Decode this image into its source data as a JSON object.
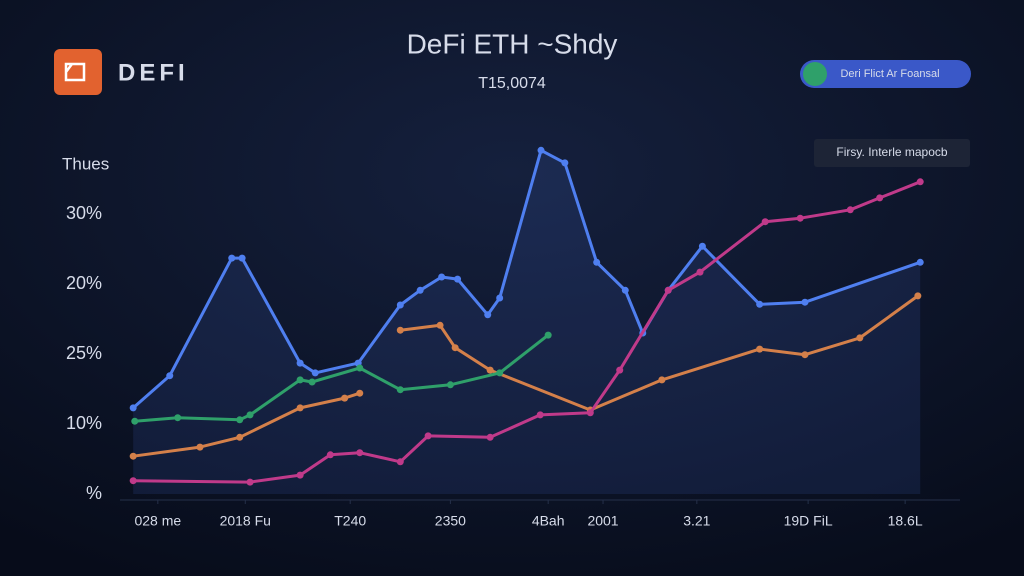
{
  "header": {
    "logo": "DEFI",
    "title": "DeFi ETH ~Shdy",
    "subtitle": "T15,0074",
    "button": "Deri Flict Ar Foansal",
    "note": "Firsy. Interle mapocb"
  },
  "chart_data": {
    "type": "line",
    "y_axis_label": "Thues",
    "y_labels": [
      "30%",
      "20%",
      "25%",
      "10%",
      "%"
    ],
    "xlim": [
      0,
      100
    ],
    "ylim": [
      0,
      50
    ],
    "xticks": [
      {
        "value": 3.5,
        "label": "028 me"
      },
      {
        "value": 14.5,
        "label": "2018 Fu"
      },
      {
        "value": 27.7,
        "label": "T240"
      },
      {
        "value": 40.3,
        "label": "2350"
      },
      {
        "value": 52.6,
        "label": "4Bah"
      },
      {
        "value": 59.5,
        "label": "2001"
      },
      {
        "value": 71.3,
        "label": "3.21"
      },
      {
        "value": 85.3,
        "label": "19D FiL"
      },
      {
        "value": 97.5,
        "label": "18.6L"
      }
    ],
    "series": [
      {
        "color": "#4f7ff0",
        "fill": true,
        "x": [
          0.4,
          5.0,
          12.8,
          14.1,
          21.4,
          23.3,
          28.7,
          34.0,
          36.5,
          39.2,
          41.2,
          45.0,
          46.5,
          51.7,
          54.7,
          58.7,
          62.3,
          64.5,
          67.7,
          72.0,
          79.2,
          84.9,
          99.4
        ],
        "values": [
          12.3,
          16.9,
          33.7,
          33.7,
          18.7,
          17.3,
          18.7,
          27.0,
          29.1,
          31.0,
          30.7,
          25.6,
          28.0,
          49.1,
          47.3,
          33.1,
          29.1,
          23.0,
          29.1,
          35.4,
          27.1,
          27.4,
          33.1
        ]
      },
      {
        "color": "#d4804a",
        "x": [
          0.4,
          8.8,
          13.8,
          21.4,
          27.0,
          28.9,
          null,
          34.0,
          39.0,
          40.9,
          45.3,
          57.9,
          66.9,
          79.2,
          84.9,
          91.8,
          99.1
        ],
        "values": [
          5.4,
          6.7,
          8.1,
          12.3,
          13.7,
          14.4,
          null,
          23.4,
          24.1,
          20.9,
          17.7,
          12.0,
          16.3,
          20.7,
          19.9,
          22.3,
          28.3
        ]
      },
      {
        "color": "#2fa06a",
        "x": [
          0.6,
          6.0,
          13.8,
          15.1,
          21.4,
          22.9,
          28.9,
          34.0,
          40.3,
          46.5,
          52.6
        ],
        "values": [
          10.4,
          10.9,
          10.6,
          11.3,
          16.3,
          16.0,
          18.0,
          14.9,
          15.6,
          17.3,
          22.7
        ]
      },
      {
        "color": "#c03a8a",
        "x": [
          0.4,
          15.1,
          21.4,
          25.2,
          28.9,
          34.0,
          37.5,
          45.3,
          51.6,
          57.9,
          61.6,
          67.7,
          71.7,
          79.9,
          84.3,
          90.6,
          94.3,
          99.4
        ],
        "values": [
          1.9,
          1.7,
          2.7,
          5.6,
          5.9,
          4.6,
          8.3,
          8.1,
          11.3,
          11.6,
          17.7,
          29.1,
          31.7,
          38.9,
          39.4,
          40.6,
          42.3,
          44.6
        ]
      }
    ]
  }
}
